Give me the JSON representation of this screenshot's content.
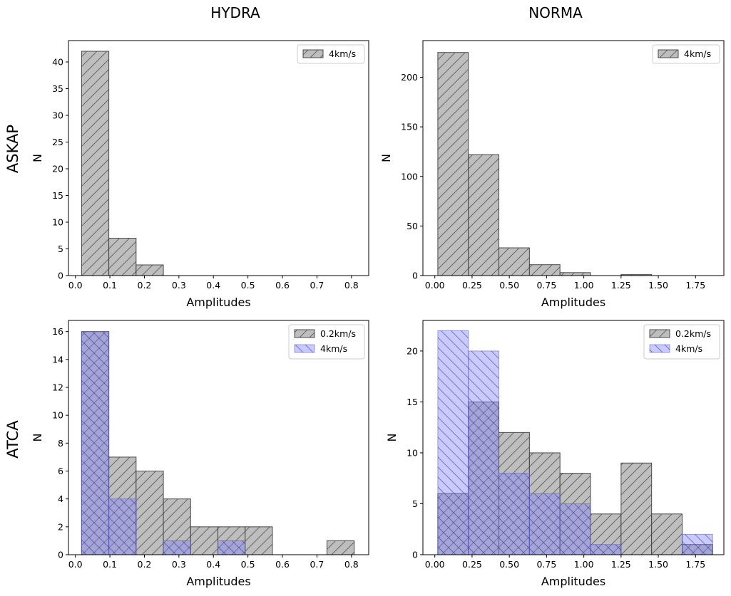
{
  "column_titles": [
    "HYDRA",
    "NORMA"
  ],
  "row_titles": [
    "ASKAP",
    "ATCA"
  ],
  "colors": {
    "gray_fill": "#bebebe",
    "gray_edge": "#3a3a3a",
    "blue_fill": "#8080ff",
    "blue_edge": "#5a5ac8"
  },
  "chart_data": [
    {
      "type": "bar",
      "panel": "ASKAP-HYDRA",
      "xlabel": "Amplitudes",
      "ylabel": "N",
      "xlim": [
        -0.02,
        0.85
      ],
      "ylim": [
        0,
        44
      ],
      "xticks": [
        0.0,
        0.1,
        0.2,
        0.3,
        0.4,
        0.5,
        0.6,
        0.7,
        0.8
      ],
      "xticklabels": [
        "0.0",
        "0.1",
        "0.2",
        "0.3",
        "0.4",
        "0.5",
        "0.6",
        "0.7",
        "0.8"
      ],
      "yticks": [
        0,
        5,
        10,
        15,
        20,
        25,
        30,
        35,
        40
      ],
      "legend_loc": "upper right",
      "series": [
        {
          "name": "4km/s",
          "style": "gray",
          "hatch": "forward",
          "bin_edges": [
            0.018,
            0.097,
            0.176,
            0.255,
            0.334,
            0.413,
            0.492,
            0.571,
            0.65,
            0.729,
            0.808
          ],
          "counts": [
            42,
            7,
            2,
            0,
            0,
            0,
            0,
            0,
            0,
            0
          ]
        }
      ]
    },
    {
      "type": "bar",
      "panel": "ASKAP-NORMA",
      "xlabel": "Amplitudes",
      "ylabel": "N",
      "xlim": [
        -0.08,
        1.94
      ],
      "ylim": [
        0,
        237
      ],
      "xticks": [
        0.0,
        0.25,
        0.5,
        0.75,
        1.0,
        1.25,
        1.5,
        1.75
      ],
      "xticklabels": [
        "0.00",
        "0.25",
        "0.50",
        "0.75",
        "1.00",
        "1.25",
        "1.50",
        "1.75"
      ],
      "yticks": [
        0,
        50,
        100,
        150,
        200
      ],
      "legend_loc": "upper right",
      "series": [
        {
          "name": "4km/s",
          "style": "gray",
          "hatch": "forward",
          "bin_edges": [
            0.02,
            0.225,
            0.43,
            0.635,
            0.84,
            1.045,
            1.25,
            1.455,
            1.66,
            1.865
          ],
          "counts": [
            225,
            122,
            28,
            11,
            3,
            0,
            1,
            0,
            0
          ]
        }
      ]
    },
    {
      "type": "bar",
      "panel": "ATCA-HYDRA",
      "xlabel": "Amplitudes",
      "ylabel": "N",
      "xlim": [
        -0.02,
        0.85
      ],
      "ylim": [
        0,
        16.8
      ],
      "xticks": [
        0.0,
        0.1,
        0.2,
        0.3,
        0.4,
        0.5,
        0.6,
        0.7,
        0.8
      ],
      "xticklabels": [
        "0.0",
        "0.1",
        "0.2",
        "0.3",
        "0.4",
        "0.5",
        "0.6",
        "0.7",
        "0.8"
      ],
      "yticks": [
        0,
        2,
        4,
        6,
        8,
        10,
        12,
        14,
        16
      ],
      "legend_loc": "upper right",
      "series": [
        {
          "name": "0.2km/s",
          "style": "gray",
          "hatch": "forward",
          "bin_edges": [
            0.018,
            0.097,
            0.176,
            0.255,
            0.334,
            0.413,
            0.492,
            0.571,
            0.65,
            0.729,
            0.808
          ],
          "counts": [
            16,
            7,
            6,
            4,
            2,
            2,
            2,
            0,
            0,
            1
          ]
        },
        {
          "name": "4km/s",
          "style": "blue",
          "hatch": "back",
          "bin_edges": [
            0.018,
            0.097,
            0.176,
            0.255,
            0.334,
            0.413,
            0.492,
            0.571,
            0.65,
            0.729,
            0.808
          ],
          "counts": [
            16,
            4,
            0,
            1,
            0,
            1,
            0,
            0,
            0,
            0
          ]
        }
      ]
    },
    {
      "type": "bar",
      "panel": "ATCA-NORMA",
      "xlabel": "Amplitudes",
      "ylabel": "N",
      "xlim": [
        -0.08,
        1.94
      ],
      "ylim": [
        0,
        23
      ],
      "xticks": [
        0.0,
        0.25,
        0.5,
        0.75,
        1.0,
        1.25,
        1.5,
        1.75
      ],
      "xticklabels": [
        "0.00",
        "0.25",
        "0.50",
        "0.75",
        "1.00",
        "1.25",
        "1.50",
        "1.75"
      ],
      "yticks": [
        0,
        5,
        10,
        15,
        20
      ],
      "legend_loc": "upper right",
      "series": [
        {
          "name": "0.2km/s",
          "style": "gray",
          "hatch": "forward",
          "bin_edges": [
            0.02,
            0.225,
            0.43,
            0.635,
            0.84,
            1.045,
            1.25,
            1.455,
            1.66,
            1.865
          ],
          "counts": [
            6,
            15,
            12,
            10,
            8,
            4,
            9,
            4,
            1
          ]
        },
        {
          "name": "4km/s",
          "style": "blue",
          "hatch": "back",
          "bin_edges": [
            0.02,
            0.225,
            0.43,
            0.635,
            0.84,
            1.045,
            1.25,
            1.455,
            1.66,
            1.865
          ],
          "counts": [
            22,
            20,
            8,
            6,
            5,
            1,
            0,
            0,
            2
          ]
        }
      ]
    }
  ]
}
